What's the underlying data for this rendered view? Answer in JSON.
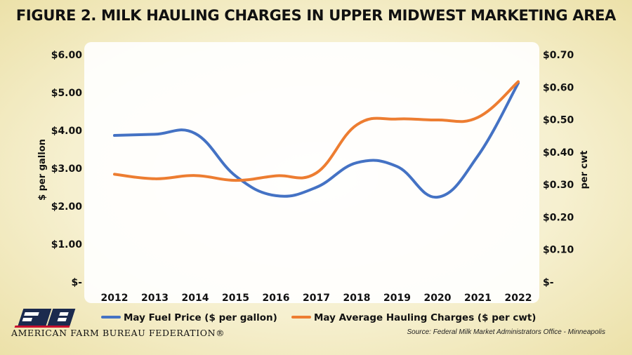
{
  "chart_data": {
    "type": "line",
    "title": "FIGURE 2. MILK HAULING CHARGES IN UPPER MIDWEST MARKETING AREA",
    "x": [
      "2012",
      "2013",
      "2014",
      "2015",
      "2016",
      "2017",
      "2018",
      "2019",
      "2020",
      "2021",
      "2022"
    ],
    "ylabel_left": "$ per gallon",
    "ylabel_right": "per cwt",
    "ylim_left": [
      0,
      6
    ],
    "ylim_right": [
      0,
      0.7
    ],
    "yticks_left": [
      "$-",
      "$1.00",
      "$2.00",
      "$3.00",
      "$4.00",
      "$5.00",
      "$6.00"
    ],
    "yticks_right": [
      "$-",
      "$0.10",
      "$0.20",
      "$0.30",
      "$0.40",
      "$0.50",
      "$0.60",
      "$0.70"
    ],
    "grid": false,
    "legend_position": "bottom",
    "series": [
      {
        "name": "May Fuel Price ($ per gallon)",
        "axis": "left",
        "color": "#4472C4",
        "values": [
          3.87,
          3.9,
          3.92,
          2.8,
          2.28,
          2.5,
          3.15,
          3.05,
          2.24,
          3.33,
          5.25
        ]
      },
      {
        "name": "May Average Hauling Charges ($ per cwt)",
        "axis": "right",
        "color": "#ED7D31",
        "values": [
          0.332,
          0.318,
          0.328,
          0.313,
          0.327,
          0.336,
          0.484,
          0.502,
          0.499,
          0.507,
          0.617
        ]
      }
    ]
  },
  "branding": {
    "org_name": "AMERICAN FARM BUREAU FEDERATION®"
  },
  "source": "Source: Federal Milk Market Administrators Office - Minneapolis"
}
